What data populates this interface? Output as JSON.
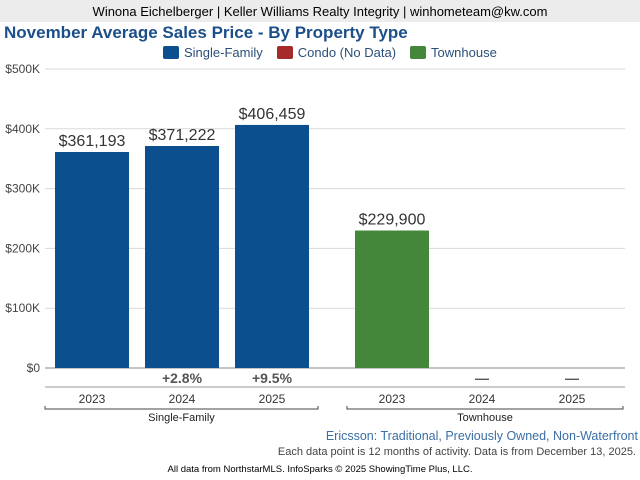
{
  "header": {
    "agent_line": "Winona Eichelberger | Keller Williams Realty Integrity | winhometeam@kw.com"
  },
  "colors": {
    "single_family": "#0b4f8e",
    "condo": "#a52a2a",
    "townhouse": "#44873a",
    "grid": "#d9d9d9",
    "axis_text": "#444444"
  },
  "chart_data": {
    "type": "bar",
    "title": "November Average Sales Price - By Property Type",
    "ylim": [
      0,
      500000
    ],
    "y_ticks": [
      0,
      100000,
      200000,
      300000,
      400000,
      500000
    ],
    "y_tick_labels": [
      "$0",
      "$100K",
      "$200K",
      "$300K",
      "$400K",
      "$500K"
    ],
    "legend_position": "top",
    "grid": true,
    "legend": [
      {
        "name": "Single-Family",
        "color_key": "single_family"
      },
      {
        "name": "Condo (No Data)",
        "color_key": "condo"
      },
      {
        "name": "Townhouse",
        "color_key": "townhouse"
      }
    ],
    "groups": [
      {
        "name": "Single-Family",
        "color_key": "single_family",
        "bars": [
          {
            "year": "2023",
            "value": 361193,
            "label": "$361,193",
            "change": ""
          },
          {
            "year": "2024",
            "value": 371222,
            "label": "$371,222",
            "change": "+2.8%"
          },
          {
            "year": "2025",
            "value": 406459,
            "label": "$406,459",
            "change": "+9.5%"
          }
        ]
      },
      {
        "name": "Townhouse",
        "color_key": "townhouse",
        "bars": [
          {
            "year": "2023",
            "value": 229900,
            "label": "$229,900",
            "change": ""
          },
          {
            "year": "2024",
            "value": null,
            "label": "",
            "change": "—"
          },
          {
            "year": "2025",
            "value": null,
            "label": "",
            "change": "—"
          }
        ]
      }
    ]
  },
  "footer": {
    "subtitle": "Ericsson: Traditional, Previously Owned, Non-Waterfront",
    "note": "Each data point is 12 months of activity. Data is from December 13, 2025.",
    "credit": "All data from NorthstarMLS. InfoSparks © 2025 ShowingTime Plus, LLC."
  }
}
